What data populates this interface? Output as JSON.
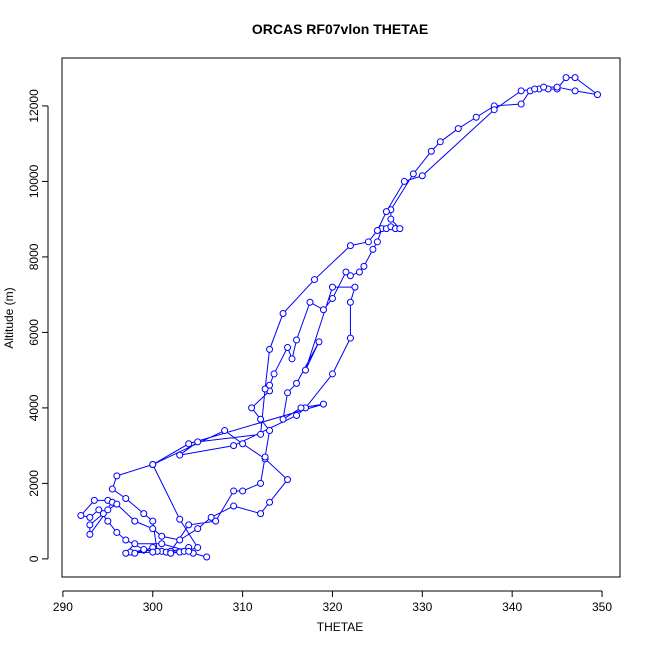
{
  "chart_data": {
    "type": "scatter",
    "title": "ORCAS RF07vlon THETAE",
    "x_label": "THETAE",
    "y_label": "Altitude (m)",
    "color": "#0000ff",
    "connect": true,
    "xlim": [
      289.9,
      352
    ],
    "ylim": [
      -480,
      13270
    ],
    "xticks": [
      290,
      300,
      310,
      320,
      330,
      340,
      350
    ],
    "yticks": [
      0,
      2000,
      4000,
      6000,
      8000,
      10000,
      12000
    ],
    "x": [
      306,
      304.5,
      303,
      301,
      299,
      297.5,
      298,
      300,
      302,
      304,
      301.5,
      299,
      297,
      296,
      295,
      294,
      293,
      292,
      293.5,
      295,
      295.5,
      294.5,
      293,
      293,
      295,
      296,
      298,
      300,
      301,
      303,
      305,
      306.5,
      309,
      312,
      313,
      315,
      312.5,
      310,
      308,
      300,
      296,
      295.5,
      297,
      299,
      300,
      300.5,
      302,
      304,
      307,
      309,
      310,
      312,
      312.5,
      313,
      312,
      311,
      313,
      313,
      313.5,
      315,
      315.5,
      316,
      317.5,
      319,
      320,
      321.5,
      322,
      323,
      323.5,
      324.5,
      325,
      325.5,
      326,
      326.5,
      327,
      327.5,
      326.5,
      326.5,
      329,
      331,
      332,
      334,
      336,
      338,
      341,
      342,
      343,
      344,
      345,
      346,
      347,
      349.5,
      347,
      345,
      343.5,
      342.5,
      341,
      338,
      330,
      328,
      326,
      325,
      324,
      322,
      318,
      314.5,
      313,
      312.5,
      312,
      305,
      303,
      309,
      316,
      317,
      320,
      322,
      322,
      322.5,
      320,
      317,
      318.5,
      316,
      315,
      314.5,
      316.5,
      319,
      304,
      300,
      303,
      305,
      303.5,
      302,
      300,
      297,
      298,
      301,
      304
    ],
    "y": [
      50,
      150,
      180,
      200,
      230,
      180,
      150,
      300,
      200,
      300,
      180,
      250,
      500,
      700,
      1000,
      1300,
      1100,
      1150,
      1550,
      1550,
      1500,
      1200,
      900,
      650,
      1300,
      1450,
      1000,
      800,
      600,
      500,
      800,
      1100,
      1400,
      1200,
      1500,
      2100,
      2650,
      3050,
      3400,
      2500,
      2200,
      1850,
      1600,
      1200,
      1000,
      200,
      200,
      900,
      1000,
      1800,
      1800,
      2000,
      2700,
      3400,
      3700,
      4000,
      4450,
      4600,
      4900,
      5600,
      5300,
      5800,
      6800,
      6600,
      6900,
      7600,
      7500,
      7600,
      7750,
      8200,
      8400,
      8750,
      8750,
      8800,
      8750,
      8750,
      9000,
      9250,
      10200,
      10800,
      11050,
      11400,
      11700,
      12000,
      12050,
      12400,
      12450,
      12450,
      12450,
      12750,
      12750,
      12300,
      12400,
      12500,
      12500,
      12450,
      12400,
      11900,
      10150,
      10000,
      9200,
      8700,
      8400,
      8300,
      7400,
      6500,
      5550,
      4500,
      3300,
      3100,
      2750,
      3000,
      3800,
      4000,
      4900,
      5850,
      6800,
      7200,
      7200,
      5000,
      5750,
      4650,
      4400,
      3700,
      4000,
      4100,
      3050,
      2500,
      1050,
      300,
      200,
      150,
      180,
      150,
      400,
      400,
      200
    ]
  }
}
